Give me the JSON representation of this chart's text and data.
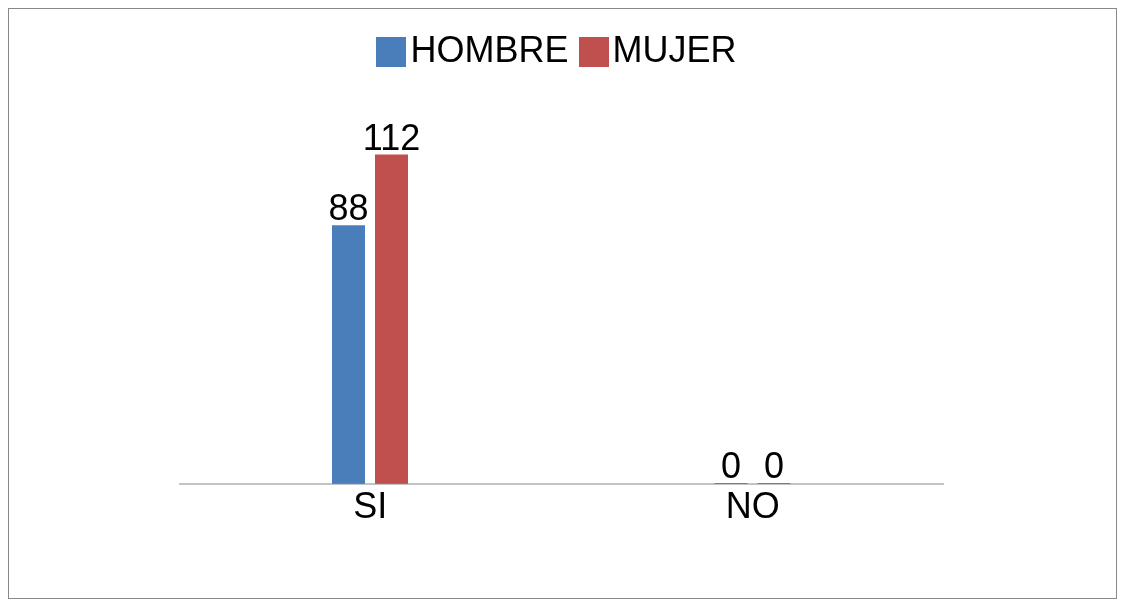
{
  "chart_data": {
    "type": "bar",
    "categories": [
      "SI",
      "NO"
    ],
    "series": [
      {
        "name": "HOMBRE",
        "color": "#4a7ebb",
        "values": [
          88,
          0
        ]
      },
      {
        "name": "MUJER",
        "color": "#c0504d",
        "values": [
          112,
          0
        ]
      }
    ],
    "data_labels": true,
    "legend": "top",
    "tick_labels": "x"
  }
}
